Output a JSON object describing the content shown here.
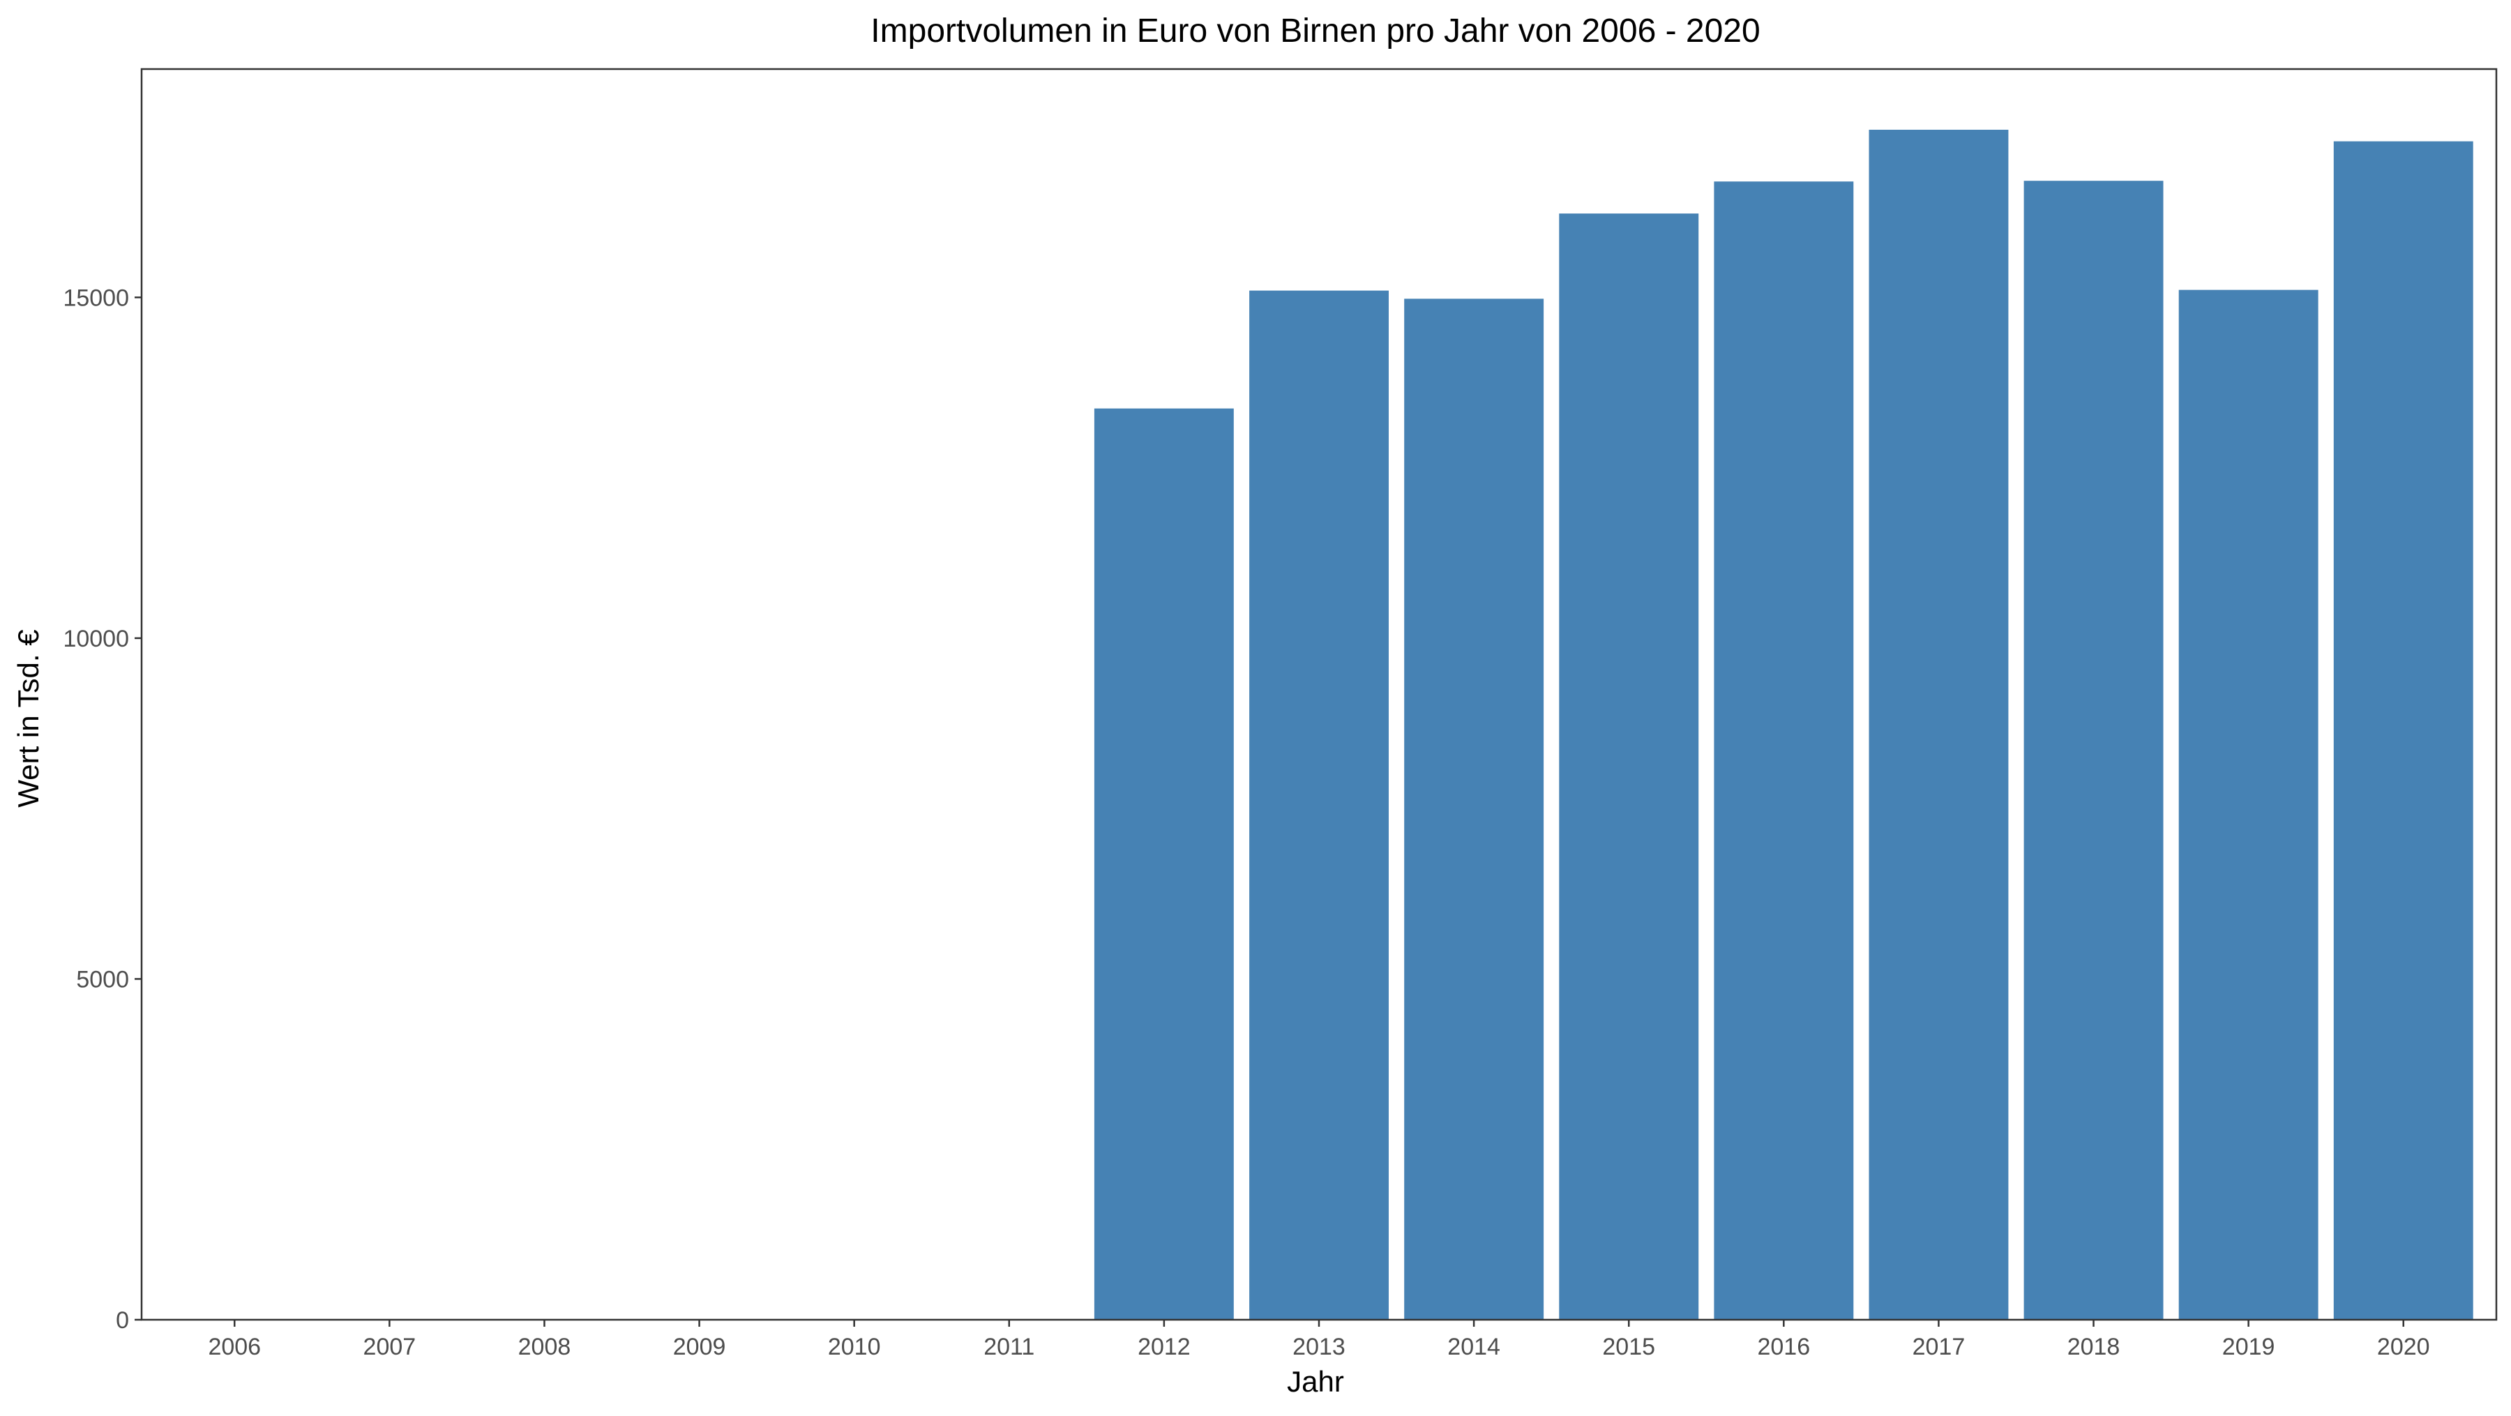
{
  "chart_data": {
    "type": "bar",
    "title": "Importvolumen in Euro von Birnen pro Jahr von 2006 - 2020",
    "xlabel": "Jahr",
    "ylabel": "Wert in Tsd. €",
    "categories": [
      "2006",
      "2007",
      "2008",
      "2009",
      "2010",
      "2011",
      "2012",
      "2013",
      "2014",
      "2015",
      "2016",
      "2017",
      "2018",
      "2019",
      "2020"
    ],
    "values": [
      0,
      0,
      0,
      0,
      0,
      0,
      13370,
      15100,
      14980,
      16230,
      16700,
      17460,
      16710,
      15110,
      17290
    ],
    "ylim": [
      0,
      18350
    ],
    "yticks": [
      0,
      5000,
      10000,
      15000
    ],
    "ytick_labels": [
      "0",
      "5000",
      "10000",
      "15000"
    ],
    "bar_color": "#4682b4",
    "grid": false,
    "legend": "none"
  }
}
